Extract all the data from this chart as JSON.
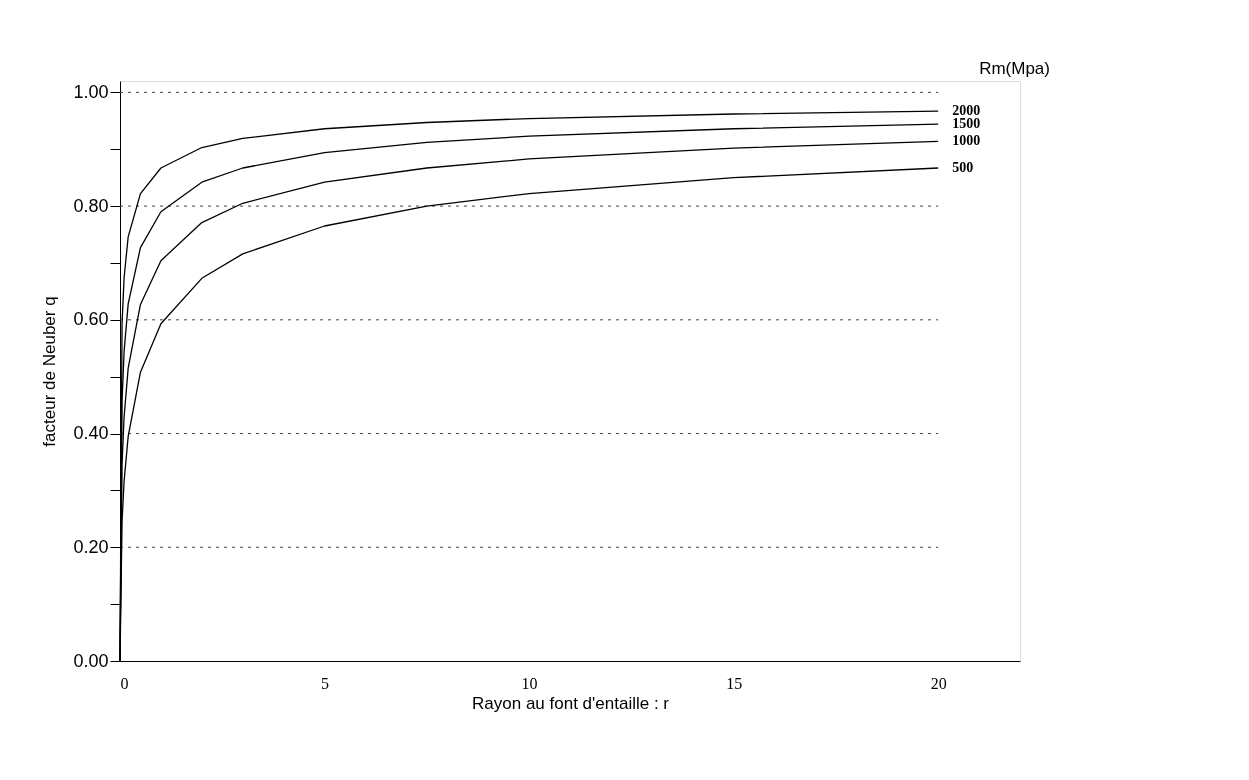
{
  "chart_data": {
    "type": "line",
    "xlabel": "Rayon au font d'entaille : r",
    "ylabel": "facteur de Neuber q",
    "legend_title": "Rm(Mpa)",
    "legend": "right",
    "x": [
      0,
      0.05,
      0.1,
      0.2,
      0.5,
      1,
      2,
      3,
      5,
      7.5,
      10,
      15,
      20
    ],
    "series": [
      {
        "name": "2000",
        "color": "#000000",
        "values": [
          0,
          0.594,
          0.674,
          0.746,
          0.822,
          0.867,
          0.903,
          0.919,
          0.936,
          0.947,
          0.954,
          0.962,
          0.967
        ]
      },
      {
        "name": "1500",
        "color": "#000000",
        "values": [
          0,
          0.457,
          0.544,
          0.628,
          0.727,
          0.79,
          0.842,
          0.867,
          0.894,
          0.912,
          0.923,
          0.936,
          0.944
        ]
      },
      {
        "name": "1000",
        "color": "#000000",
        "values": [
          0,
          0.347,
          0.429,
          0.515,
          0.627,
          0.704,
          0.771,
          0.805,
          0.842,
          0.867,
          0.883,
          0.902,
          0.914
        ]
      },
      {
        "name": "500",
        "color": "#000000",
        "values": [
          0,
          0.246,
          0.316,
          0.395,
          0.508,
          0.593,
          0.673,
          0.716,
          0.765,
          0.8,
          0.822,
          0.85,
          0.867
        ]
      }
    ],
    "xlim": [
      0,
      22
    ],
    "xticks": [
      0,
      5,
      10,
      15,
      20
    ],
    "ylim": [
      0,
      1.02
    ],
    "yticks": [
      {
        "value": 0,
        "label": "0.00"
      },
      {
        "value": 0.1,
        "label": null
      },
      {
        "value": 0.2,
        "label": "0.20"
      },
      {
        "value": 0.3,
        "label": null
      },
      {
        "value": 0.4,
        "label": "0.40"
      },
      {
        "value": 0.5,
        "label": null
      },
      {
        "value": 0.6,
        "label": "0.60"
      },
      {
        "value": 0.7,
        "label": null
      },
      {
        "value": 0.8,
        "label": "0.80"
      },
      {
        "value": 0.9,
        "label": null
      },
      {
        "value": 1.0,
        "label": "1.00"
      }
    ],
    "grid": "y",
    "marker": "none",
    "line_style": "solid"
  }
}
